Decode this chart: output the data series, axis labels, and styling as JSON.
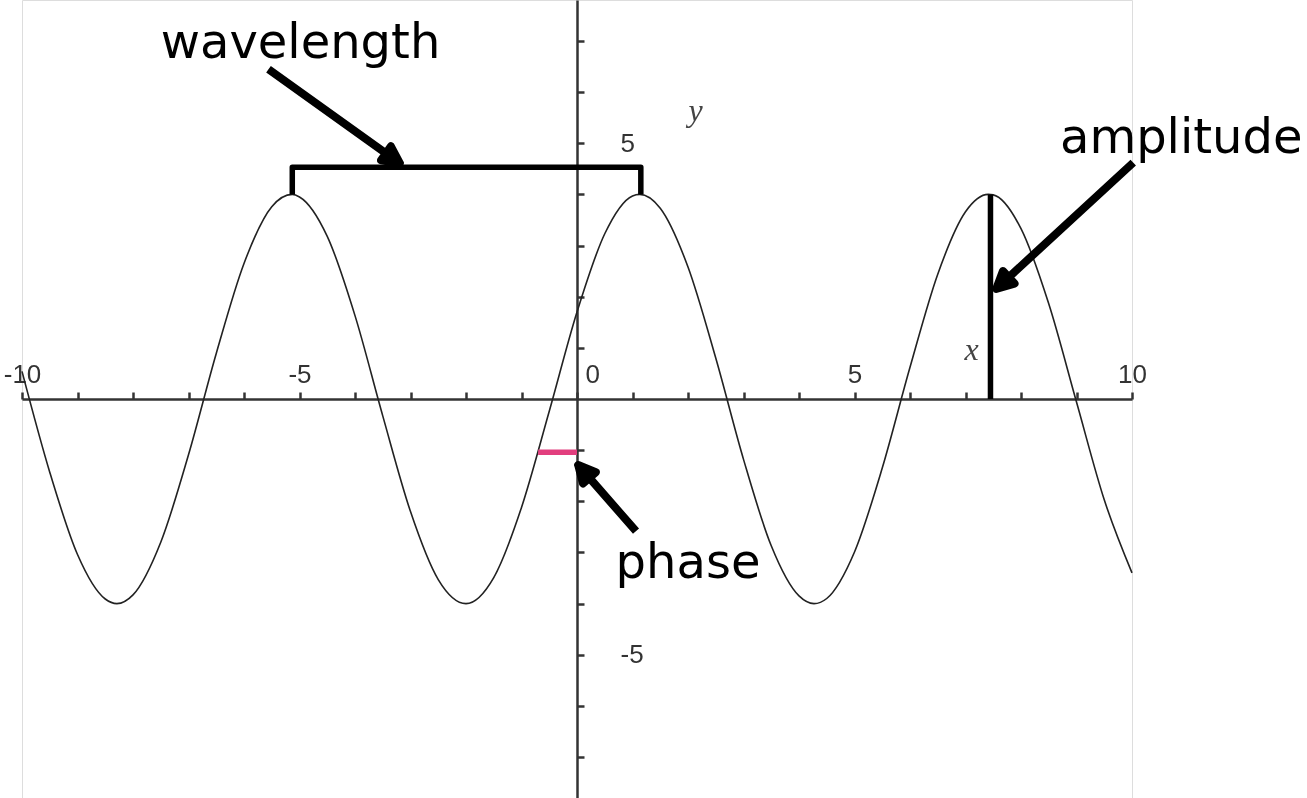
{
  "chart_data": {
    "type": "line",
    "xlabel": "x",
    "ylabel": "y",
    "xlim": [
      -10,
      10
    ],
    "ylim": [
      -7.8,
      7.8
    ],
    "xticks": [
      -10,
      {
        "value": -9,
        "label": null
      },
      {
        "value": -8,
        "label": null
      },
      {
        "value": -7,
        "label": null
      },
      {
        "value": -6,
        "label": null
      },
      -5,
      {
        "value": -4,
        "label": null
      },
      {
        "value": -3,
        "label": null
      },
      {
        "value": -2,
        "label": null
      },
      {
        "value": -1,
        "label": null
      },
      0,
      {
        "value": 1,
        "label": null
      },
      {
        "value": 2,
        "label": null
      },
      {
        "value": 3,
        "label": null
      },
      {
        "value": 4,
        "label": null
      },
      5,
      {
        "value": 6,
        "label": null
      },
      {
        "value": 7,
        "label": null
      },
      {
        "value": 8,
        "label": null
      },
      {
        "value": 9,
        "label": null
      },
      10
    ],
    "yticks": [
      {
        "value": -7,
        "label": null
      },
      {
        "value": -6,
        "label": null
      },
      -5,
      {
        "value": -4,
        "label": null
      },
      {
        "value": -3,
        "label": null
      },
      {
        "value": -2,
        "label": null
      },
      {
        "value": -1,
        "label": null
      },
      {
        "value": 1,
        "label": null
      },
      {
        "value": 2,
        "label": null
      },
      {
        "value": 3,
        "label": null
      },
      {
        "value": 4,
        "label": null
      },
      5,
      {
        "value": 6,
        "label": null
      },
      {
        "value": 7,
        "label": null
      }
    ],
    "series": [
      {
        "color": "#222222",
        "x": [
          -10,
          -9.5,
          -9,
          -8.5,
          -8.29,
          -8,
          -7.5,
          -7,
          -6.5,
          -6,
          -5.5,
          -5.13,
          -5,
          -4.5,
          -4,
          -3.5,
          -3,
          -2.5,
          -2,
          -1.5,
          -1,
          -0.5,
          0,
          0.5,
          1,
          1.13,
          1.5,
          2,
          2.5,
          3,
          3.5,
          4,
          4.27,
          4.5,
          5,
          5.5,
          6,
          6.5,
          7,
          7.41,
          7.5,
          8,
          8.5,
          9,
          9.5,
          10
        ],
        "values": [
          0.54,
          -1.43,
          -3.04,
          -3.91,
          -4,
          -3.83,
          -2.8,
          -1.09,
          0.89,
          2.65,
          3.76,
          4,
          3.95,
          3.18,
          1.63,
          -0.33,
          -2.2,
          -3.53,
          -4,
          -3.49,
          -2.12,
          -0.24,
          1.7,
          3.23,
          3.97,
          4,
          3.73,
          2.58,
          0.8,
          -1.18,
          -2.87,
          -3.85,
          -4,
          -3.9,
          -2.99,
          -1.35,
          0.62,
          2.44,
          3.66,
          4,
          3.99,
          3.33,
          1.86,
          -0.06,
          -1.97,
          -3.4
        ]
      },
      {
        "color": "#000000",
        "x": [
          -5.13,
          -5.13,
          1.15,
          1.15
        ],
        "values": [
          4,
          4.53,
          4.53,
          4
        ]
      },
      {
        "color": "#000000",
        "x": [
          7.45,
          7.45
        ],
        "values": [
          0,
          4
        ]
      },
      {
        "color": "#e23e7e",
        "x": [
          -0.7,
          0
        ],
        "values": [
          -1.04,
          -1.04
        ]
      }
    ],
    "annotations": [
      {
        "text": "wavelength",
        "x": -3.09,
        "y": 4.53
      },
      {
        "text": "amplitude",
        "x": 7.5,
        "y": 2.1
      },
      {
        "text": "phase",
        "x": -0.18,
        "y": -1.04
      }
    ]
  }
}
